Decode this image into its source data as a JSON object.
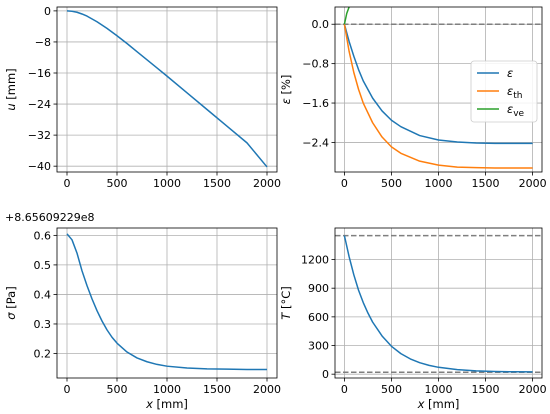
{
  "chart_data": [
    {
      "type": "line",
      "id": "u",
      "xlabel_var": "",
      "xlabel_unit": "",
      "ylabel_var": "u",
      "ylabel_unit": "[mm]",
      "xlim": [
        -100,
        2100
      ],
      "ylim": [
        -41.5,
        1.0
      ],
      "xticks": [
        0,
        500,
        1000,
        1500,
        2000
      ],
      "yticks": [
        0,
        -8,
        -16,
        -24,
        -32,
        -40
      ],
      "ytick_labels": [
        "0",
        "−8",
        "−16",
        "−24",
        "−32",
        "−40"
      ],
      "grid": true,
      "series": [
        {
          "color": "#1f77b4",
          "x": [
            0,
            50,
            100,
            150,
            200,
            300,
            400,
            500,
            600,
            700,
            800,
            900,
            1000,
            1200,
            1400,
            1600,
            1800,
            2000
          ],
          "y": [
            0,
            -0.1,
            -0.35,
            -0.8,
            -1.35,
            -2.8,
            -4.5,
            -6.4,
            -8.4,
            -10.5,
            -12.6,
            -14.7,
            -16.8,
            -21.1,
            -25.4,
            -29.7,
            -34.0,
            -40.2
          ]
        }
      ]
    },
    {
      "type": "line",
      "id": "eps",
      "xlabel_var": "",
      "xlabel_unit": "",
      "ylabel_var": "ε",
      "ylabel_unit": "[%]",
      "xlim": [
        -100,
        2100
      ],
      "ylim": [
        -3.0,
        0.35
      ],
      "xticks": [
        0,
        500,
        1000,
        1500,
        2000
      ],
      "yticks": [
        0.0,
        -0.8,
        -1.6,
        -2.4
      ],
      "ytick_labels": [
        "0.0",
        "−0.8",
        "−1.6",
        "−2.4"
      ],
      "grid": true,
      "hlines": [
        0.0
      ],
      "legend": {
        "position": "center-right",
        "entries": [
          {
            "base": "ε",
            "sub": "",
            "color": "#1f77b4"
          },
          {
            "base": "ε",
            "sub": "th",
            "color": "#ff7f0e"
          },
          {
            "base": "ε",
            "sub": "ve",
            "color": "#2ca02c"
          }
        ]
      },
      "series": [
        {
          "color": "#1f77b4",
          "x": [
            0,
            50,
            100,
            150,
            200,
            300,
            400,
            500,
            600,
            800,
            1000,
            1200,
            1400,
            1600,
            1800,
            2000
          ],
          "y": [
            0,
            -0.35,
            -0.65,
            -0.92,
            -1.15,
            -1.5,
            -1.76,
            -1.95,
            -2.08,
            -2.26,
            -2.35,
            -2.39,
            -2.41,
            -2.42,
            -2.42,
            -2.42
          ]
        },
        {
          "color": "#ff7f0e",
          "x": [
            0,
            50,
            100,
            150,
            200,
            300,
            400,
            500,
            600,
            800,
            1000,
            1200,
            1400,
            1600,
            1800,
            2000
          ],
          "y": [
            0,
            -0.55,
            -0.98,
            -1.32,
            -1.6,
            -2.0,
            -2.29,
            -2.49,
            -2.62,
            -2.78,
            -2.86,
            -2.9,
            -2.91,
            -2.92,
            -2.92,
            -2.92
          ]
        },
        {
          "color": "#2ca02c",
          "x": [
            0,
            25,
            50,
            75,
            100,
            150,
            200,
            300,
            400,
            600,
            1000,
            1500,
            2000
          ],
          "y": [
            0,
            0.22,
            0.35,
            0.42,
            0.46,
            0.49,
            0.5,
            0.5,
            0.5,
            0.5,
            0.5,
            0.5,
            0.5
          ]
        }
      ]
    },
    {
      "type": "line",
      "id": "sigma",
      "xlabel_var": "x",
      "xlabel_unit": "[mm]",
      "ylabel_var": "σ",
      "ylabel_unit": "[Pa]",
      "offset_label": "+8.65609229e8",
      "xlim": [
        -100,
        2100
      ],
      "ylim": [
        0.117,
        0.625
      ],
      "xticks": [
        0,
        500,
        1000,
        1500,
        2000
      ],
      "yticks": [
        0.2,
        0.3,
        0.4,
        0.5,
        0.6
      ],
      "ytick_labels": [
        "0.2",
        "0.3",
        "0.4",
        "0.5",
        "0.6"
      ],
      "grid": true,
      "series": [
        {
          "color": "#1f77b4",
          "x": [
            0,
            50,
            100,
            150,
            200,
            250,
            300,
            350,
            400,
            450,
            500,
            600,
            700,
            800,
            900,
            1000,
            1200,
            1400,
            1600,
            1800,
            2000
          ],
          "y": [
            0.605,
            0.585,
            0.54,
            0.48,
            0.43,
            0.385,
            0.345,
            0.31,
            0.28,
            0.255,
            0.235,
            0.205,
            0.185,
            0.172,
            0.163,
            0.157,
            0.151,
            0.148,
            0.147,
            0.146,
            0.146
          ]
        }
      ]
    },
    {
      "type": "line",
      "id": "T",
      "xlabel_var": "x",
      "xlabel_unit": "[mm]",
      "ylabel_var": "T",
      "ylabel_unit": "[°C]",
      "xlim": [
        -100,
        2100
      ],
      "ylim": [
        -40,
        1530
      ],
      "xticks": [
        0,
        500,
        1000,
        1500,
        2000
      ],
      "yticks": [
        0,
        300,
        600,
        900,
        1200
      ],
      "ytick_labels": [
        "0",
        "300",
        "600",
        "900",
        "1200"
      ],
      "grid": true,
      "hlines": [
        1450,
        20
      ],
      "series": [
        {
          "color": "#1f77b4",
          "x": [
            0,
            50,
            100,
            150,
            200,
            250,
            300,
            400,
            500,
            600,
            700,
            800,
            900,
            1000,
            1200,
            1400,
            1600,
            1800,
            2000
          ],
          "y": [
            1450,
            1230,
            1040,
            880,
            750,
            640,
            545,
            400,
            292,
            215,
            160,
            120,
            92,
            72,
            48,
            35,
            28,
            25,
            24
          ]
        }
      ]
    }
  ]
}
